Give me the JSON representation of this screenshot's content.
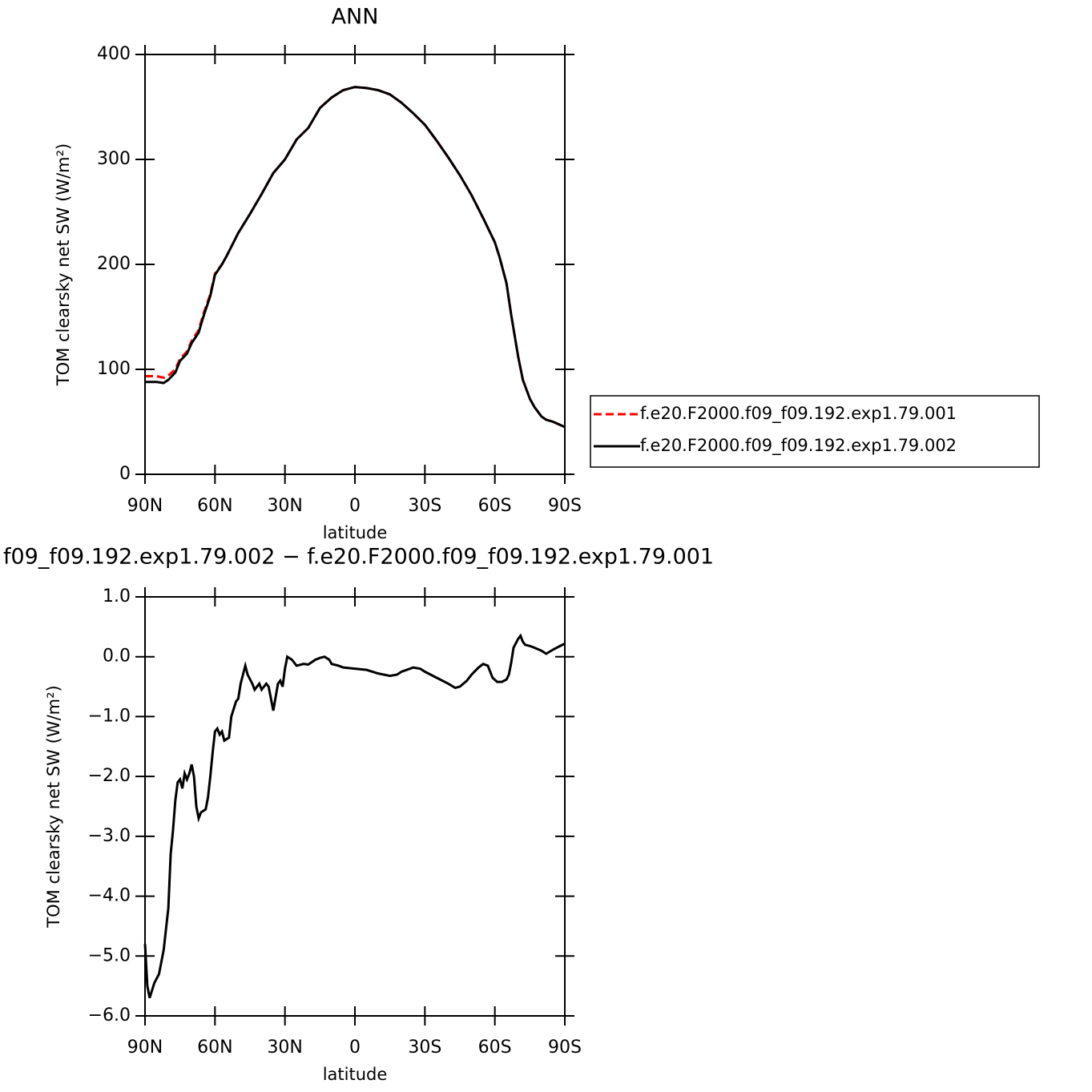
{
  "chart_data": [
    {
      "type": "line",
      "title": "ANN",
      "xlabel": "latitude",
      "ylabel": "TOM clearsky net SW (W/m²)",
      "x": [
        90,
        85,
        82,
        80,
        77,
        75,
        72,
        70,
        67,
        65,
        62,
        60,
        57,
        55,
        50,
        45,
        40,
        35,
        30,
        25,
        20,
        15,
        10,
        5,
        0,
        -5,
        -10,
        -15,
        -20,
        -25,
        -30,
        -35,
        -40,
        -45,
        -50,
        -55,
        -60,
        -62,
        -65,
        -67,
        -70,
        -72,
        -75,
        -77,
        -80,
        -82,
        -85,
        -88,
        -90
      ],
      "series": [
        {
          "name": "f.e20.F2000.f09_f09.192.exp1.79.001",
          "color": "#ff0000",
          "line_style": "dashed",
          "values": [
            93.5,
            93.5,
            92,
            94,
            100,
            110,
            117,
            127,
            137.5,
            152.6,
            171.5,
            191.2,
            200,
            208,
            230,
            248,
            267,
            287,
            300,
            319,
            330,
            349,
            359,
            366,
            369,
            368,
            366,
            362,
            354,
            344,
            333,
            318,
            302,
            285,
            266,
            244,
            221,
            207,
            182,
            152,
            112,
            90,
            72,
            64,
            55,
            52,
            50,
            47,
            45
          ]
        },
        {
          "name": "f.e20.F2000.f09_f09.192.exp1.79.002",
          "color": "#000000",
          "line_style": "solid",
          "values": [
            88,
            88,
            87,
            90,
            97,
            108,
            115,
            125,
            135,
            150,
            170,
            190,
            200,
            208,
            230,
            248,
            267,
            287,
            300,
            319,
            330,
            349,
            359,
            366,
            369,
            368,
            366,
            362,
            354,
            344,
            333,
            318,
            302,
            285,
            266,
            244,
            221,
            207,
            182,
            152,
            112,
            90,
            72,
            64,
            55,
            52,
            50,
            47,
            45
          ]
        }
      ],
      "xlim": [
        90,
        -90
      ],
      "xticks": [
        {
          "value": 90,
          "label": "90N"
        },
        {
          "value": 60,
          "label": "60N"
        },
        {
          "value": 30,
          "label": "30N"
        },
        0,
        {
          "value": -30,
          "label": "30S"
        },
        {
          "value": -60,
          "label": "60S"
        },
        {
          "value": -90,
          "label": "90S"
        }
      ],
      "ylim": [
        0,
        400
      ],
      "yticks": [
        0,
        100,
        200,
        300,
        400
      ],
      "legend": "outside-right"
    },
    {
      "type": "line",
      "title": "f09_f09.192.exp1.79.002 − f.e20.F2000.f09_f09.192.exp1.79.001",
      "xlabel": "latitude",
      "ylabel": "TOM clearsky net SW (W/m²)",
      "x": [
        90,
        89,
        88,
        86,
        84,
        82,
        80,
        79,
        78,
        77,
        76,
        75,
        74,
        73,
        72,
        71,
        70,
        69,
        68,
        67,
        66,
        64,
        63,
        62,
        61,
        60,
        59,
        58,
        57,
        56,
        54,
        53,
        51,
        50,
        49,
        48,
        47,
        46,
        44,
        43,
        42,
        41,
        40,
        38,
        37,
        35,
        33,
        32,
        31,
        30,
        29,
        27,
        25,
        22,
        20,
        17,
        15,
        13,
        11,
        10,
        7,
        5,
        0,
        -5,
        -10,
        -15,
        -18,
        -20,
        -25,
        -28,
        -30,
        -35,
        -40,
        -43,
        -45,
        -48,
        -50,
        -53,
        -55,
        -57,
        -59,
        -61,
        -63,
        -65,
        -66,
        -67,
        -68,
        -70,
        -71,
        -72,
        -73,
        -75,
        -77,
        -80,
        -82,
        -85,
        -88,
        -90
      ],
      "series": [
        {
          "color": "#000000",
          "line_style": "solid",
          "values": [
            -4.8,
            -5.5,
            -5.7,
            -5.45,
            -5.3,
            -4.9,
            -4.2,
            -3.3,
            -2.9,
            -2.4,
            -2.1,
            -2.05,
            -2.2,
            -1.95,
            -2.05,
            -1.95,
            -1.8,
            -2.0,
            -2.5,
            -2.7,
            -2.6,
            -2.55,
            -2.35,
            -2.0,
            -1.6,
            -1.25,
            -1.2,
            -1.3,
            -1.25,
            -1.4,
            -1.35,
            -1.0,
            -0.75,
            -0.7,
            -0.45,
            -0.3,
            -0.15,
            -0.3,
            -0.45,
            -0.55,
            -0.5,
            -0.45,
            -0.55,
            -0.45,
            -0.5,
            -0.9,
            -0.45,
            -0.4,
            -0.5,
            -0.2,
            0.0,
            -0.05,
            -0.15,
            -0.12,
            -0.13,
            -0.05,
            -0.02,
            0.0,
            -0.05,
            -0.12,
            -0.15,
            -0.18,
            -0.2,
            -0.22,
            -0.28,
            -0.32,
            -0.3,
            -0.25,
            -0.18,
            -0.2,
            -0.25,
            -0.35,
            -0.45,
            -0.52,
            -0.5,
            -0.4,
            -0.3,
            -0.18,
            -0.12,
            -0.15,
            -0.35,
            -0.42,
            -0.42,
            -0.38,
            -0.3,
            -0.1,
            0.15,
            0.3,
            0.35,
            0.25,
            0.2,
            0.18,
            0.15,
            0.1,
            0.05,
            0.12,
            0.18,
            0.22
          ]
        }
      ],
      "xlim": [
        90,
        -90
      ],
      "xticks": [
        {
          "value": 90,
          "label": "90N"
        },
        {
          "value": 60,
          "label": "60N"
        },
        {
          "value": 30,
          "label": "30N"
        },
        0,
        {
          "value": -30,
          "label": "30S"
        },
        {
          "value": -60,
          "label": "60S"
        },
        {
          "value": -90,
          "label": "90S"
        }
      ],
      "ylim": [
        -6,
        1
      ],
      "yticks": [
        {
          "value": -6,
          "label": "−6.0"
        },
        {
          "value": -5,
          "label": "−5.0"
        },
        {
          "value": -4,
          "label": "−4.0"
        },
        {
          "value": -3,
          "label": "−3.0"
        },
        {
          "value": -2,
          "label": "−2.0"
        },
        {
          "value": -1,
          "label": "−1.0"
        },
        {
          "value": 0,
          "label": "0.0"
        },
        {
          "value": 1,
          "label": "1.0"
        }
      ]
    }
  ]
}
